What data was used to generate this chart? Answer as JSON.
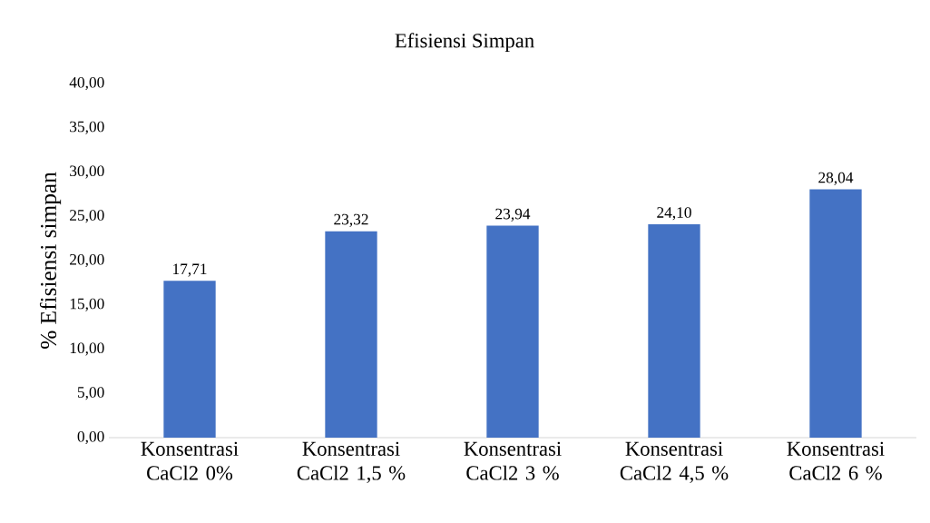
{
  "chart_data": {
    "type": "bar",
    "title": "Efisiensi Simpan",
    "ylabel": "% Efisiensi simpan",
    "categories": [
      "Konsentrasi CaCl2 0%",
      "Konsentrasi CaCl2 1,5 %",
      "Konsentrasi CaCl2 3 %",
      "Konsentrasi CaCl2 4,5 %",
      "Konsentrasi CaCl2 6 %"
    ],
    "values": [
      17.71,
      23.32,
      23.94,
      24.1,
      28.04
    ],
    "value_labels": [
      "17,71",
      "23,32",
      "23,94",
      "24,10",
      "28,04"
    ],
    "color": "#4472c4",
    "ylim": [
      0,
      40
    ],
    "yticks": [
      {
        "value": 0,
        "label": "0,00"
      },
      {
        "value": 5,
        "label": "5,00"
      },
      {
        "value": 10,
        "label": "10,00"
      },
      {
        "value": 15,
        "label": "15,00"
      },
      {
        "value": 20,
        "label": "20,00"
      },
      {
        "value": 25,
        "label": "25,00"
      },
      {
        "value": 30,
        "label": "30,00"
      },
      {
        "value": 35,
        "label": "35,00"
      },
      {
        "value": 40,
        "label": "40,00"
      }
    ]
  }
}
